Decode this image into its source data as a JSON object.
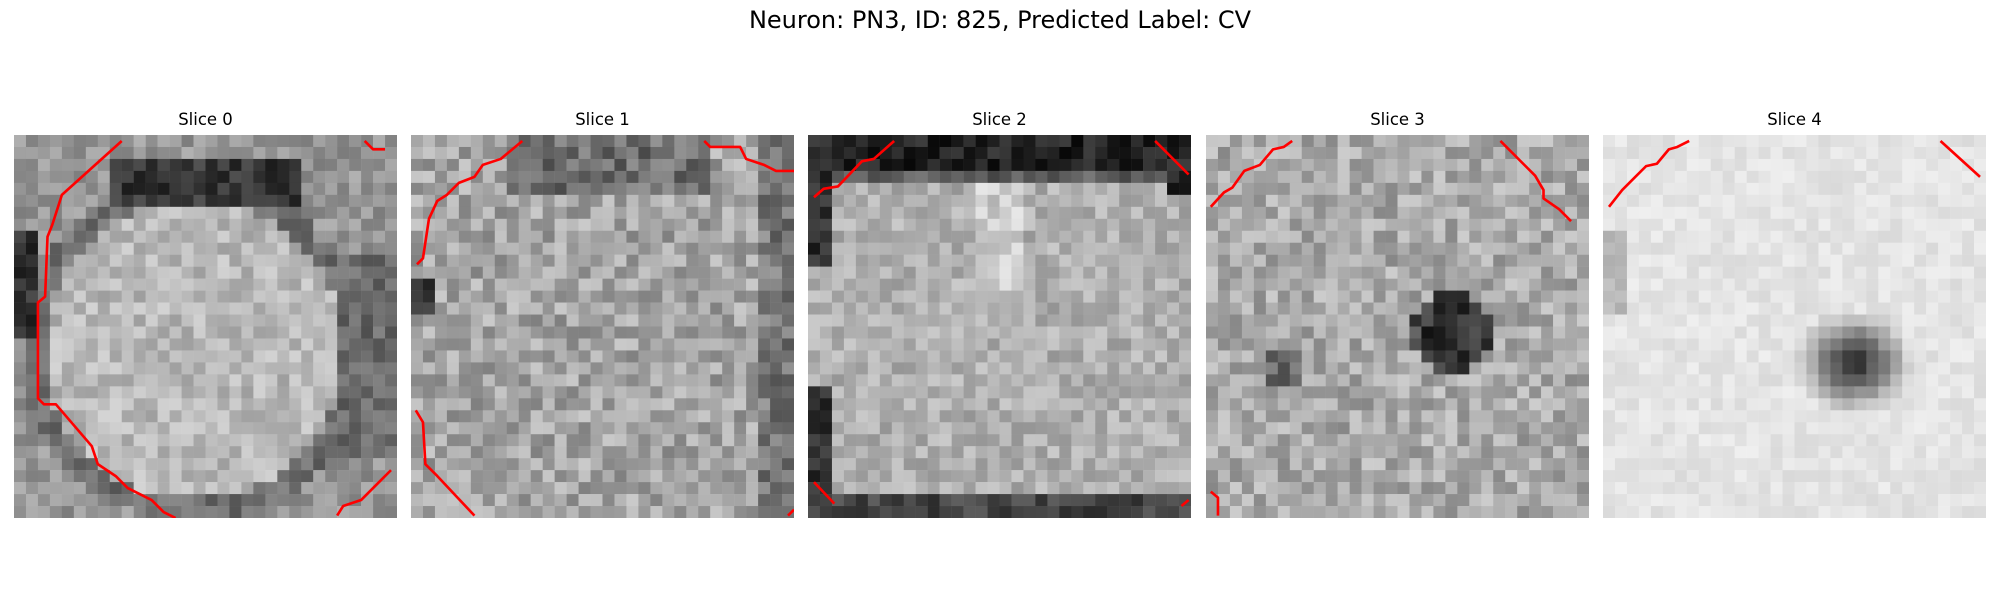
{
  "figure": {
    "title": "Neuron: PN3, ID: 825, Predicted Label: CV"
  },
  "panels": [
    {
      "title": "Slice 0"
    },
    {
      "title": "Slice 1"
    },
    {
      "title": "Slice 2"
    },
    {
      "title": "Slice 3"
    },
    {
      "title": "Slice 4"
    }
  ],
  "colors": {
    "contour": "#ff0000",
    "background": "#ffffff",
    "colormap": "grayscale"
  }
}
